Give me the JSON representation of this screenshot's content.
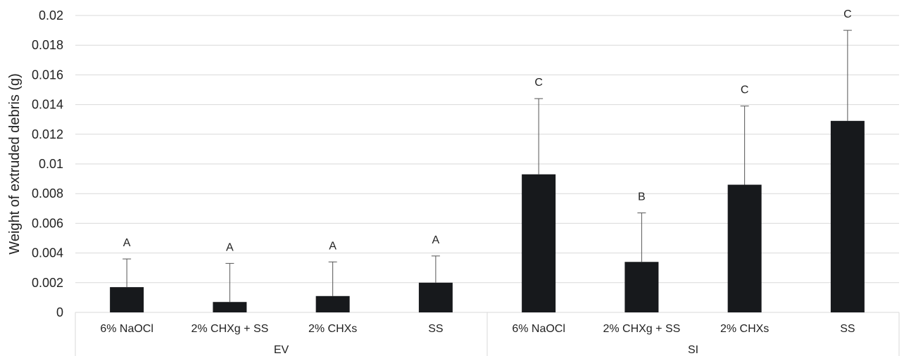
{
  "chart_data": {
    "type": "bar",
    "ylabel": "Weight of extruded debris (g)",
    "ylim": [
      0,
      0.02
    ],
    "yticks": [
      0,
      0.002,
      0.004,
      0.006,
      0.008,
      0.01,
      0.012,
      0.014,
      0.016,
      0.018,
      0.02
    ],
    "ytick_labels": [
      "0",
      "0.002",
      "0.004",
      "0.006",
      "0.008",
      "0.01",
      "0.012",
      "0.014",
      "0.016",
      "0.018",
      "0.02"
    ],
    "grid": true,
    "groups": [
      {
        "name": "EV",
        "categories": [
          "6% NaOCl",
          "2% CHXg + SS",
          "2% CHXs",
          "SS"
        ],
        "values": [
          0.0017,
          0.0007,
          0.0011,
          0.002
        ],
        "errors": [
          0.0019,
          0.0026,
          0.0023,
          0.0018
        ],
        "significance": [
          "A",
          "A",
          "A",
          "A"
        ]
      },
      {
        "name": "SI",
        "categories": [
          "6% NaOCl",
          "2% CHXg + SS",
          "2% CHXs",
          "SS"
        ],
        "values": [
          0.0093,
          0.0034,
          0.0086,
          0.0129
        ],
        "errors": [
          0.0051,
          0.0033,
          0.0053,
          0.0061
        ],
        "significance": [
          "C",
          "B",
          "C",
          "C"
        ]
      }
    ],
    "colors": {
      "bar": "#17191c",
      "error": "#555555",
      "grid": "#d9d9d9"
    }
  }
}
